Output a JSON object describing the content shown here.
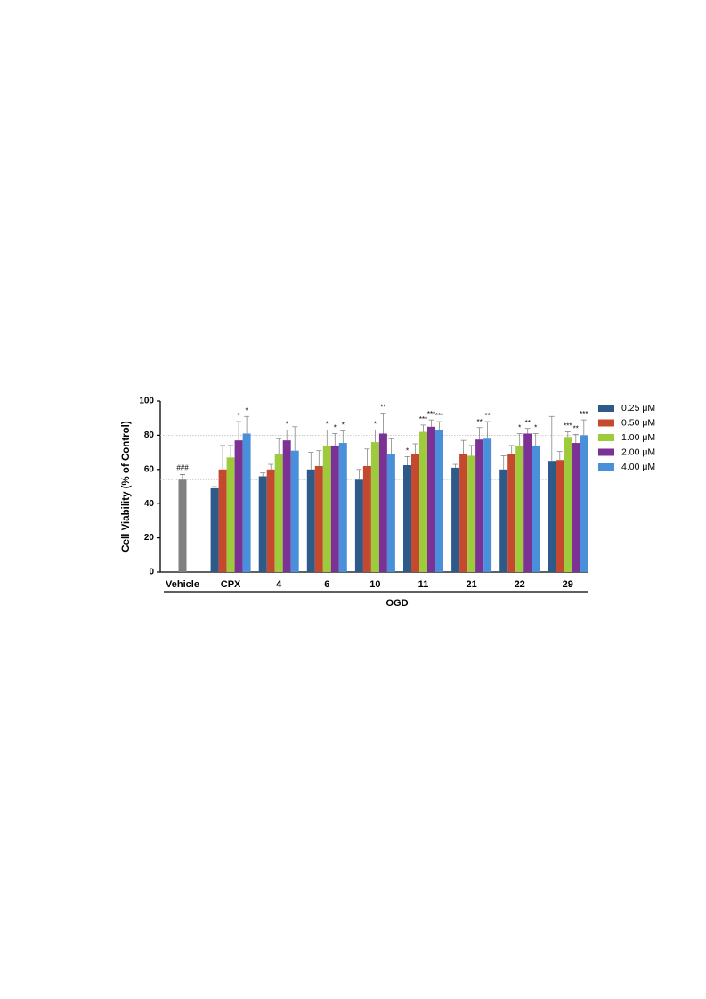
{
  "chart_data": {
    "type": "bar",
    "y_label": "Cell Viability (% of Control)",
    "categories": [
      "Vehicle",
      "CPX",
      "4",
      "6",
      "10",
      "11",
      "21",
      "22",
      "29"
    ],
    "group_label": "OGD",
    "ylim": [
      0,
      100
    ],
    "yticks": [
      0,
      20,
      40,
      60,
      80,
      100
    ],
    "reference_lines": [
      80,
      54
    ],
    "control_bar": {
      "value": 54,
      "error": 3,
      "color": "#808080",
      "annotation": "###"
    },
    "series": [
      {
        "name": "0.25 μM",
        "color": "#2e5a8a",
        "values": [
          null,
          49,
          56,
          60,
          54,
          62.5,
          61,
          60,
          65
        ],
        "errors": [
          null,
          1,
          2,
          10,
          6,
          5,
          2,
          8,
          26
        ],
        "annotations": [
          null,
          null,
          null,
          null,
          null,
          "*",
          null,
          null,
          null
        ]
      },
      {
        "name": "0.50 μM",
        "color": "#c4492e",
        "values": [
          null,
          60,
          60,
          62,
          62,
          69,
          69,
          69,
          65.5
        ],
        "errors": [
          null,
          14,
          3,
          9,
          10,
          6,
          8,
          5,
          5
        ],
        "annotations": [
          null,
          null,
          null,
          null,
          null,
          null,
          null,
          null,
          null
        ]
      },
      {
        "name": "1.00 μM",
        "color": "#9dcb3c",
        "values": [
          null,
          67,
          69,
          74,
          76,
          82,
          68,
          74,
          79
        ],
        "errors": [
          null,
          7,
          9,
          9,
          7,
          4,
          6,
          7,
          3
        ],
        "annotations": [
          null,
          null,
          null,
          "*",
          "*",
          "***",
          null,
          "*",
          "***"
        ]
      },
      {
        "name": "2.00 μM",
        "color": "#7b3294",
        "values": [
          null,
          77,
          77,
          74,
          81,
          85,
          77.5,
          81,
          75.5
        ],
        "errors": [
          null,
          11,
          6,
          7,
          12,
          4,
          7,
          3,
          5
        ],
        "annotations": [
          null,
          "*",
          "*",
          "*",
          "**",
          "***",
          "**",
          "**",
          "**"
        ]
      },
      {
        "name": "4.00 μM",
        "color": "#4a8fd9",
        "values": [
          null,
          81,
          71,
          75.5,
          69,
          83,
          78,
          74,
          80
        ],
        "errors": [
          null,
          10,
          14,
          7,
          9,
          5,
          10,
          7,
          9
        ],
        "annotations": [
          null,
          "*",
          null,
          "*",
          null,
          "***",
          "**",
          "*",
          "***"
        ]
      }
    ]
  }
}
